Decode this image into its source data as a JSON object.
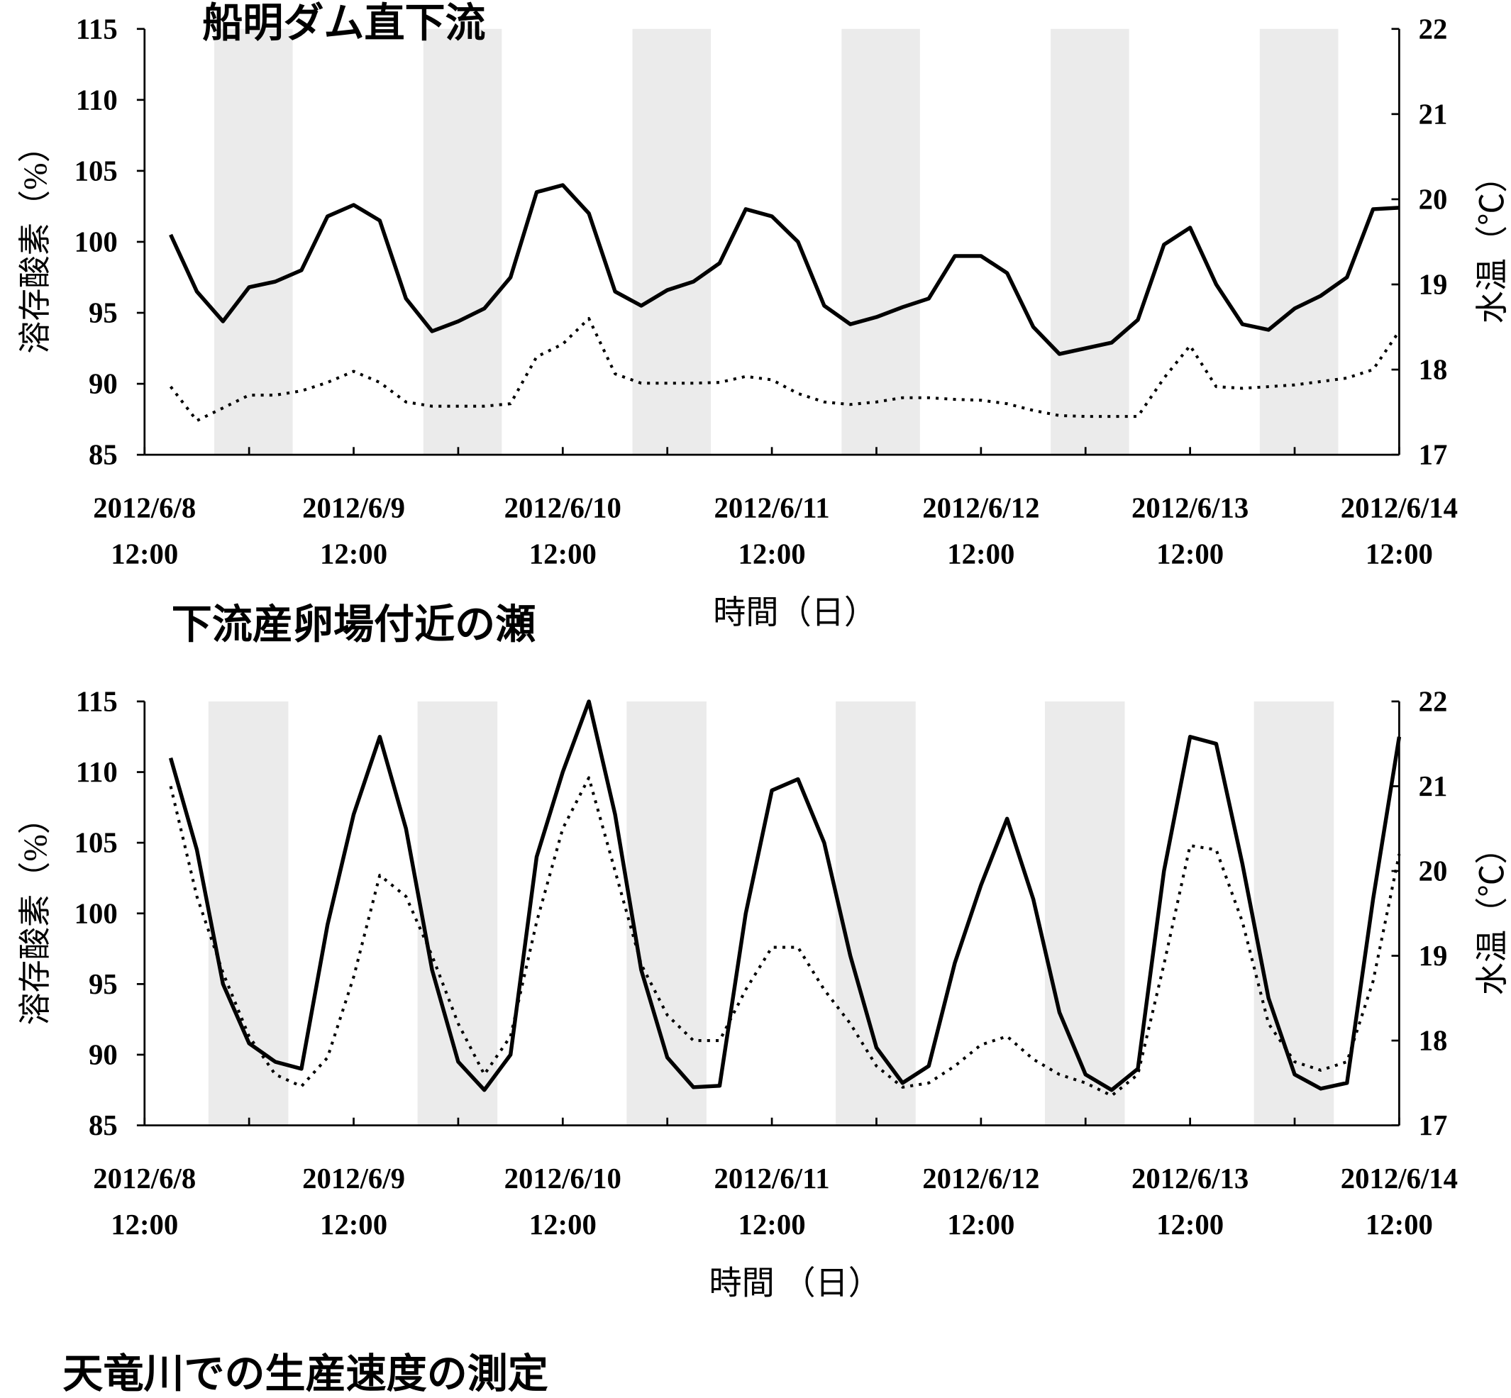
{
  "chart_data": [
    {
      "type": "line",
      "title": "船明ダム直下流",
      "xlabel": "時間（日）",
      "ylabel": "溶存酸素（%）",
      "y2label": "水温（℃）",
      "xlim": [
        "2012/6/8 12:00",
        "2012/6/14 12:00"
      ],
      "xticks": [
        "2012/6/8 12:00",
        "2012/6/9 12:00",
        "2012/6/10 12:00",
        "2012/6/11 12:00",
        "2012/6/12 12:00",
        "2012/6/13 12:00",
        "2012/6/14 12:00"
      ],
      "xminorticks": [
        "2012/6/9 00:00",
        "2012/6/10 00:00",
        "2012/6/11 00:00",
        "2012/6/12 00:00",
        "2012/6/13 00:00",
        "2012/6/14 00:00"
      ],
      "ylim": [
        85,
        115
      ],
      "yticks": [
        85,
        90,
        95,
        100,
        105,
        110,
        115
      ],
      "y2lim": [
        17,
        22
      ],
      "y2ticks": [
        17,
        18,
        19,
        20,
        21,
        22
      ],
      "night_periods": [
        [
          "2012/6/8 20:00",
          "2012/6/9 05:00"
        ],
        [
          "2012/6/9 20:00",
          "2012/6/10 05:00"
        ],
        [
          "2012/6/10 20:00",
          "2012/6/11 05:00"
        ],
        [
          "2012/6/11 20:00",
          "2012/6/12 05:00"
        ],
        [
          "2012/6/12 20:00",
          "2012/6/13 05:00"
        ],
        [
          "2012/6/13 20:00",
          "2012/6/14 05:00"
        ]
      ],
      "shade_color": "#ebebeb",
      "x": [
        "2012/6/8 15:00",
        "2012/6/8 18:00",
        "2012/6/8 21:00",
        "2012/6/9 00:00",
        "2012/6/9 03:00",
        "2012/6/9 06:00",
        "2012/6/9 09:00",
        "2012/6/9 12:00",
        "2012/6/9 15:00",
        "2012/6/9 18:00",
        "2012/6/9 21:00",
        "2012/6/10 00:00",
        "2012/6/10 03:00",
        "2012/6/10 06:00",
        "2012/6/10 09:00",
        "2012/6/10 12:00",
        "2012/6/10 15:00",
        "2012/6/10 18:00",
        "2012/6/10 21:00",
        "2012/6/11 00:00",
        "2012/6/11 03:00",
        "2012/6/11 06:00",
        "2012/6/11 09:00",
        "2012/6/11 12:00",
        "2012/6/11 15:00",
        "2012/6/11 18:00",
        "2012/6/11 21:00",
        "2012/6/12 00:00",
        "2012/6/12 03:00",
        "2012/6/12 06:00",
        "2012/6/12 09:00",
        "2012/6/12 12:00",
        "2012/6/12 15:00",
        "2012/6/12 18:00",
        "2012/6/12 21:00",
        "2012/6/13 00:00",
        "2012/6/13 03:00",
        "2012/6/13 06:00",
        "2012/6/13 09:00",
        "2012/6/13 12:00",
        "2012/6/13 15:00",
        "2012/6/13 18:00",
        "2012/6/13 21:00",
        "2012/6/14 00:00",
        "2012/6/14 03:00",
        "2012/6/14 06:00",
        "2012/6/14 09:00",
        "2012/6/14 12:00"
      ],
      "series": [
        {
          "color": "#000000",
          "style": "solid",
          "values": [
            100.5,
            96.5,
            94.4,
            96.8,
            97.2,
            98,
            101.8,
            102.6,
            101.5,
            96,
            93.7,
            94.4,
            95.3,
            97.5,
            103.5,
            104,
            102,
            96.5,
            95.5,
            96.6,
            97.2,
            98.5,
            102.3,
            101.8,
            100,
            95.5,
            94.2,
            94.7,
            95.4,
            96,
            99,
            99,
            97.8,
            94,
            92.1,
            92.5,
            92.9,
            94.5,
            99.8,
            101,
            97,
            94.2,
            93.8,
            95.3,
            96.2,
            97.5,
            102.3,
            102.4
          ]
        },
        {
          "color": "#000000",
          "style": "dotted",
          "axis": "y2",
          "values": [
            17.8,
            17.4,
            17.55,
            17.7,
            17.7,
            17.75,
            17.85,
            17.98,
            17.85,
            17.62,
            17.57,
            17.57,
            17.57,
            17.6,
            18.15,
            18.3,
            18.6,
            17.95,
            17.84,
            17.84,
            17.84,
            17.85,
            17.92,
            17.88,
            17.72,
            17.62,
            17.59,
            17.62,
            17.67,
            17.67,
            17.65,
            17.64,
            17.6,
            17.52,
            17.46,
            17.45,
            17.45,
            17.45,
            17.9,
            18.28,
            17.8,
            17.78,
            17.8,
            17.82,
            17.86,
            17.9,
            18.0,
            18.45
          ]
        }
      ]
    },
    {
      "type": "line",
      "title": "下流産卵場付近の瀬",
      "xlabel": "時間 （日）",
      "ylabel": "溶存酸素（%）",
      "y2label": "水温（℃）",
      "xlim": [
        "2012/6/8 12:00",
        "2012/6/14 12:00"
      ],
      "xticks": [
        "2012/6/8 12:00",
        "2012/6/9 12:00",
        "2012/6/10 12:00",
        "2012/6/11 12:00",
        "2012/6/12 12:00",
        "2012/6/13 12:00",
        "2012/6/14 12:00"
      ],
      "xminorticks": [
        "2012/6/9 00:00",
        "2012/6/10 00:00",
        "2012/6/11 00:00",
        "2012/6/12 00:00",
        "2012/6/13 00:00",
        "2012/6/14 00:00"
      ],
      "ylim": [
        85,
        115
      ],
      "yticks": [
        85,
        90,
        95,
        100,
        105,
        110,
        115
      ],
      "y2lim": [
        17,
        22
      ],
      "y2ticks": [
        17,
        18,
        19,
        20,
        21,
        22
      ],
      "night_periods": [
        [
          "2012/6/8 19:20",
          "2012/6/9 04:30"
        ],
        [
          "2012/6/9 19:20",
          "2012/6/10 04:30"
        ],
        [
          "2012/6/10 19:20",
          "2012/6/11 04:30"
        ],
        [
          "2012/6/11 19:20",
          "2012/6/12 04:30"
        ],
        [
          "2012/6/12 19:20",
          "2012/6/13 04:30"
        ],
        [
          "2012/6/13 19:20",
          "2012/6/14 04:30"
        ]
      ],
      "shade_color": "#ebebeb",
      "x": [
        "2012/6/8 15:00",
        "2012/6/8 18:00",
        "2012/6/8 21:00",
        "2012/6/9 00:00",
        "2012/6/9 03:00",
        "2012/6/9 06:00",
        "2012/6/9 09:00",
        "2012/6/9 12:00",
        "2012/6/9 15:00",
        "2012/6/9 18:00",
        "2012/6/9 21:00",
        "2012/6/10 00:00",
        "2012/6/10 03:00",
        "2012/6/10 06:00",
        "2012/6/10 09:00",
        "2012/6/10 12:00",
        "2012/6/10 15:00",
        "2012/6/10 18:00",
        "2012/6/10 21:00",
        "2012/6/11 00:00",
        "2012/6/11 03:00",
        "2012/6/11 06:00",
        "2012/6/11 09:00",
        "2012/6/11 12:00",
        "2012/6/11 15:00",
        "2012/6/11 18:00",
        "2012/6/11 21:00",
        "2012/6/12 00:00",
        "2012/6/12 03:00",
        "2012/6/12 06:00",
        "2012/6/12 09:00",
        "2012/6/12 12:00",
        "2012/6/12 15:00",
        "2012/6/12 18:00",
        "2012/6/12 21:00",
        "2012/6/13 00:00",
        "2012/6/13 03:00",
        "2012/6/13 06:00",
        "2012/6/13 09:00",
        "2012/6/13 12:00",
        "2012/6/13 15:00",
        "2012/6/13 18:00",
        "2012/6/13 21:00",
        "2012/6/14 00:00",
        "2012/6/14 03:00",
        "2012/6/14 06:00",
        "2012/6/14 09:00",
        "2012/6/14 12:00"
      ],
      "series": [
        {
          "color": "#000000",
          "style": "solid",
          "values": [
            111,
            104.5,
            95,
            90.8,
            89.5,
            89,
            99.2,
            107,
            112.5,
            106,
            96,
            89.5,
            87.5,
            90,
            104,
            110,
            115,
            107,
            96,
            89.8,
            87.7,
            87.8,
            100,
            108.7,
            109.5,
            105,
            97,
            90.5,
            88,
            89.2,
            96.5,
            102,
            106.7,
            101,
            93,
            88.6,
            87.5,
            89,
            103,
            112.5,
            112,
            103.5,
            94,
            88.6,
            87.6,
            88,
            101,
            112.5
          ]
        },
        {
          "color": "#000000",
          "style": "dotted",
          "axis": "y2",
          "values": [
            21,
            19.7,
            18.8,
            18.05,
            17.6,
            17.46,
            17.8,
            18.75,
            19.95,
            19.7,
            19.0,
            18.2,
            17.6,
            18.05,
            19.4,
            20.5,
            21.1,
            20.0,
            18.9,
            18.3,
            18.0,
            18.0,
            18.6,
            19.1,
            19.1,
            18.6,
            18.2,
            17.7,
            17.45,
            17.5,
            17.7,
            17.95,
            18.05,
            17.78,
            17.6,
            17.5,
            17.35,
            17.6,
            18.9,
            20.3,
            20.25,
            19.4,
            18.2,
            17.75,
            17.65,
            17.75,
            18.7,
            20.2
          ]
        }
      ]
    }
  ],
  "caption": "天竜川での生産速度の測定"
}
